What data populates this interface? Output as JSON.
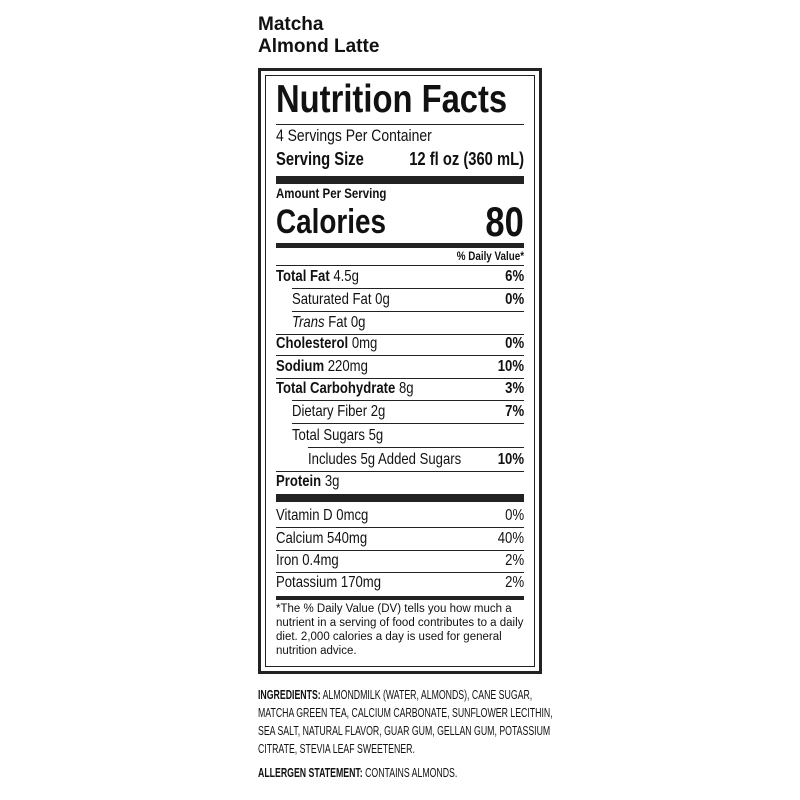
{
  "product": {
    "line1": "Matcha",
    "line2": "Almond Latte"
  },
  "label": {
    "title": "Nutrition Facts",
    "servings": "4 Servings Per Container",
    "serving_size_label": "Serving Size",
    "serving_size_value": "12 fl oz (360 mL)",
    "amount_per_serving": "Amount Per Serving",
    "calories_label": "Calories",
    "calories_value": "80",
    "dv_header": "% Daily Value*",
    "nutrients": [
      {
        "name": "Total Fat",
        "amount": "4.5g",
        "dv": "6%"
      },
      {
        "name": "Saturated Fat",
        "amount": "0g",
        "dv": "0%"
      },
      {
        "name": "Trans",
        "name2": " Fat",
        "amount": "0g",
        "dv": ""
      },
      {
        "name": "Cholesterol",
        "amount": "0mg",
        "dv": "0%"
      },
      {
        "name": "Sodium",
        "amount": "220mg",
        "dv": "10%"
      },
      {
        "name": "Total Carbohydrate",
        "amount": "8g",
        "dv": "3%"
      },
      {
        "name": "Dietary Fiber",
        "amount": "2g",
        "dv": "7%"
      },
      {
        "name": "Total Sugars",
        "amount": "5g",
        "dv": ""
      },
      {
        "name": "Includes 5g Added Sugars",
        "amount": "",
        "dv": "10%"
      },
      {
        "name": "Protein",
        "amount": "3g",
        "dv": ""
      }
    ],
    "vitamins": [
      {
        "name": "Vitamin D 0mcg",
        "dv": "0%"
      },
      {
        "name": "Calcium 540mg",
        "dv": "40%"
      },
      {
        "name": "Iron 0.4mg",
        "dv": "2%"
      },
      {
        "name": "Potassium 170mg",
        "dv": "2%"
      }
    ],
    "footnote": "*The % Daily Value (DV) tells you how much a nutrient in a serving of food contributes to a daily diet. 2,000 calories a day is used for general nutrition advice."
  },
  "ingredients": {
    "label": "INGREDIENTS:",
    "text": "ALMONDMILK (WATER, ALMONDS), CANE SUGAR, MATCHA GREEN TEA, CALCIUM CARBONATE, SUNFLOWER LECITHIN, SEA SALT, NATURAL FLAVOR, GUAR GUM, GELLAN GUM, POTASSIUM CITRATE, STEVIA LEAF SWEETENER."
  },
  "allergen": {
    "label": "ALLERGEN STATEMENT:",
    "text": "CONTAINS ALMONDS."
  }
}
